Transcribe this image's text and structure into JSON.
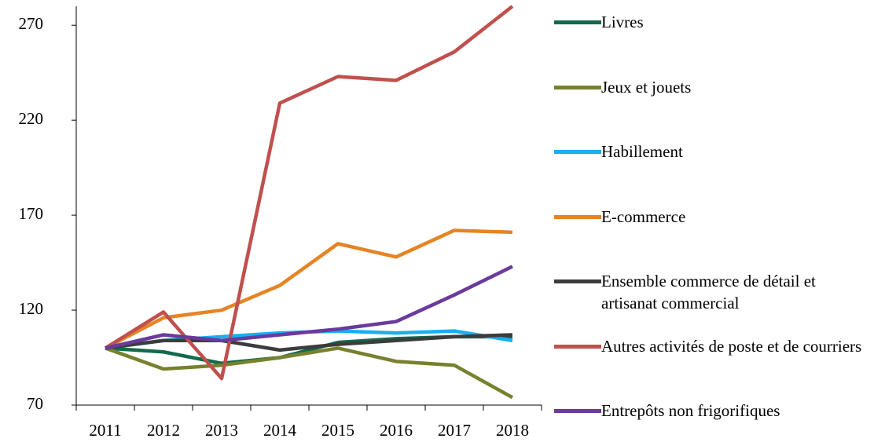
{
  "chart_data": {
    "type": "line",
    "categories": [
      "2011",
      "2012",
      "2013",
      "2014",
      "2015",
      "2016",
      "2017",
      "2018"
    ],
    "series": [
      {
        "name": "Livres",
        "color": "#13694a",
        "values": [
          100,
          98,
          92,
          95,
          103,
          105,
          106,
          106
        ]
      },
      {
        "name": "Jeux et jouets",
        "color": "#77812e",
        "values": [
          100,
          89,
          91,
          95,
          100,
          93,
          91,
          74
        ]
      },
      {
        "name": "Habillement",
        "color": "#16b0ef",
        "values": [
          100,
          104,
          106,
          108,
          109,
          108,
          109,
          104
        ]
      },
      {
        "name": "E-commerce",
        "color": "#e58425",
        "values": [
          100,
          116,
          120,
          133,
          155,
          148,
          162,
          161
        ]
      },
      {
        "name": "Ensemble commerce de détail et artisanat commercial",
        "color": "#3c3c3c",
        "values": [
          100,
          104,
          104,
          99,
          102,
          104,
          106,
          107
        ]
      },
      {
        "name": "Autres activités de poste et de courriers",
        "color": "#c0504d",
        "values": [
          100,
          119,
          84,
          229,
          243,
          241,
          256,
          280
        ]
      },
      {
        "name": "Entrepôts non frigorifiques",
        "color": "#6a3a9c",
        "values": [
          100,
          107,
          104,
          107,
          110,
          114,
          128,
          143
        ]
      }
    ],
    "ylim": [
      70,
      280
    ],
    "yticks": [
      70,
      120,
      170,
      220,
      270
    ],
    "legend": "right"
  }
}
